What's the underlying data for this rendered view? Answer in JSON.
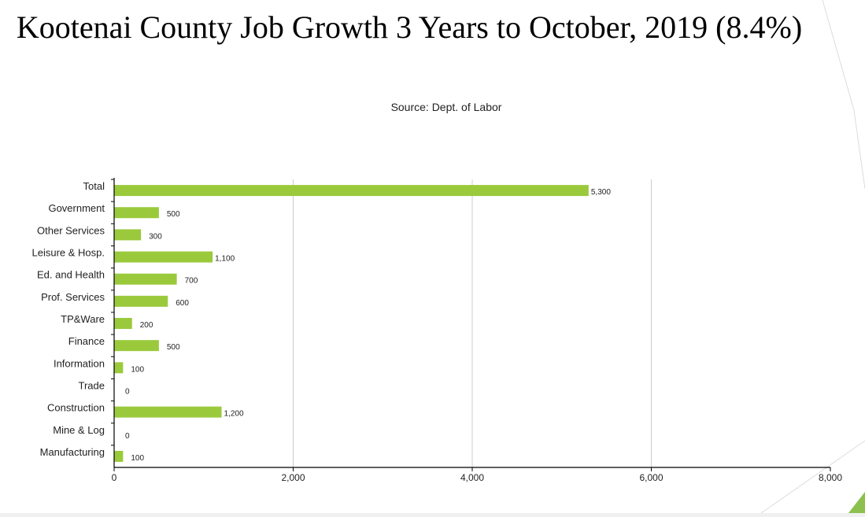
{
  "slide": {
    "title": "Kootenai County Job Growth  3 Years to October, 2019 (8.4%)"
  },
  "chart_data": {
    "type": "bar",
    "orientation": "horizontal",
    "subtitle": "Source: Dept. of Labor",
    "categories": [
      "Total",
      "Government",
      "Other Services",
      "Leisure & Hosp.",
      "Ed. and Health",
      "Prof. Services",
      "TP&Ware",
      "Finance",
      "Information",
      "Trade",
      "Construction",
      "Mine & Log",
      "Manufacturing"
    ],
    "values": [
      5300,
      500,
      300,
      1100,
      700,
      600,
      200,
      500,
      100,
      0,
      1200,
      0,
      100
    ],
    "value_labels": [
      "5,300",
      "500",
      "300",
      "1,100",
      "700",
      "600",
      "200",
      "500",
      "100",
      "0",
      "1,200",
      "0",
      "100"
    ],
    "xlim": [
      0,
      8000
    ],
    "xticks": [
      0,
      2000,
      4000,
      6000,
      8000
    ],
    "xtick_labels": [
      "0",
      "2,000",
      "4,000",
      "6,000",
      "8,000"
    ],
    "grid": "vertical",
    "bar_color": "#9ACA3C",
    "legend": "none"
  },
  "decor": {
    "accent_color": "#8DC04F"
  }
}
